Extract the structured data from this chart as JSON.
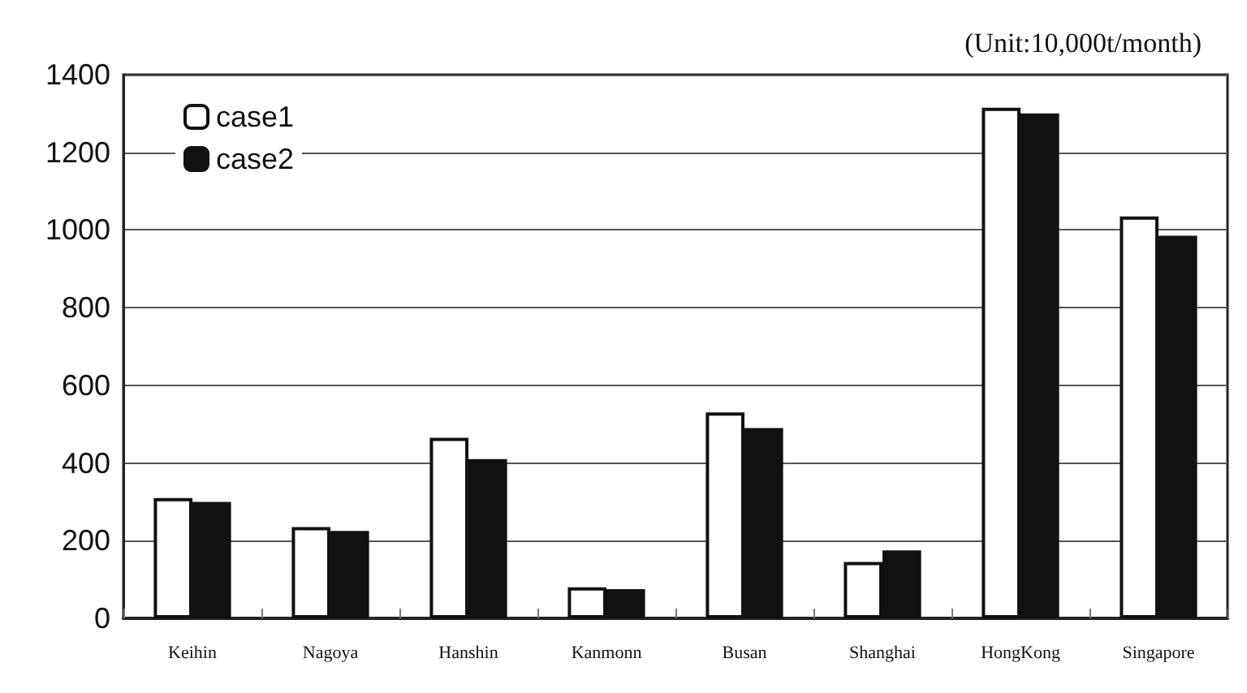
{
  "chart_data": {
    "type": "bar",
    "annotations": [
      "(Unit:10,000t/month)"
    ],
    "categories": [
      "Keihin",
      "Nagoya",
      "Hanshin",
      "Kanmonn",
      "Busan",
      "Shanghai",
      "HongKong",
      "Singapore"
    ],
    "series": [
      {
        "name": "case1",
        "color": "#ffffff",
        "values": [
          310,
          235,
          465,
          80,
          530,
          145,
          1315,
          1035
        ]
      },
      {
        "name": "case2",
        "color": "#111111",
        "values": [
          300,
          225,
          410,
          75,
          490,
          175,
          1300,
          985
        ]
      }
    ],
    "ylim": [
      0,
      1400
    ],
    "yticks": [
      0,
      200,
      400,
      600,
      800,
      1000,
      1200,
      1400
    ],
    "grid": "y",
    "legend": "top left"
  }
}
